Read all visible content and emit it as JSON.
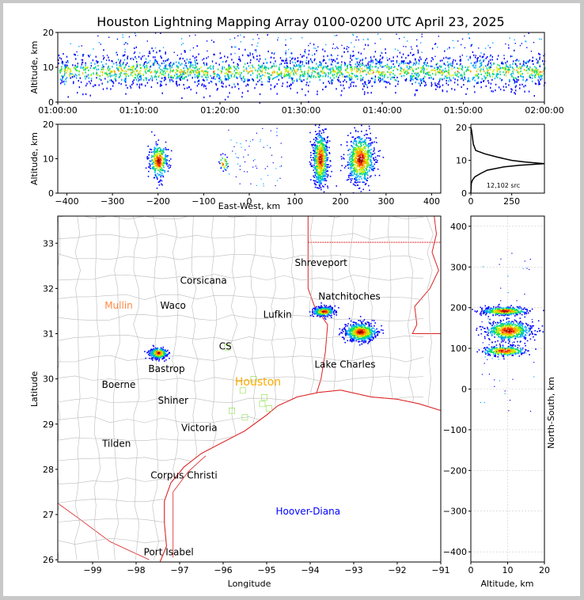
{
  "title": "Houston Lightning Mapping Array 0100-0200 UTC April 23, 2025",
  "colors": {
    "scale": [
      "#0000ff",
      "#00aaff",
      "#00dd66",
      "#ccee00",
      "#ffaa00",
      "#ff3300",
      "#990000",
      "#ffffff"
    ],
    "map_coast": "#dd2222",
    "map_borders": "#bbbbbb",
    "city": "#000000",
    "mullin": "#ff8844",
    "houston": "#ffaa00",
    "hoover": "#0000ff",
    "ring": "#88dd44"
  },
  "chart_data": [
    {
      "id": "time_height",
      "type": "scatter",
      "ylabel": "Altitude, km",
      "ylim": [
        0,
        20
      ],
      "yticks": [
        "0",
        "10",
        "20"
      ],
      "xlim_minutes": [
        60,
        120
      ],
      "xticks": [
        "01:00:00",
        "01:10:00",
        "01:20:00",
        "01:30:00",
        "01:40:00",
        "01:50:00",
        "02:00:00"
      ],
      "activity": {
        "altitude_center_km": 9,
        "altitude_spread_km": 2.5,
        "peak_time": "01:30:00"
      }
    },
    {
      "id": "ew_altitude",
      "type": "scatter",
      "xlabel": "East-West, km",
      "ylabel": "Altitude, km",
      "xlim": [
        -420,
        420
      ],
      "ylim": [
        0,
        20
      ],
      "xticks": [
        "−400",
        "−300",
        "−200",
        "−100",
        "0",
        "100",
        "200",
        "300",
        "400"
      ],
      "yticks": [
        "0",
        "10",
        "20"
      ],
      "clusters": [
        {
          "x": -200,
          "y": 9.5,
          "sx": 10,
          "sy": 2.5,
          "n": 350
        },
        {
          "x": -57,
          "y": 9,
          "sx": 5,
          "sy": 1.2,
          "n": 35
        },
        {
          "x": 155,
          "y": 10,
          "sx": 8,
          "sy": 4,
          "n": 700
        },
        {
          "x": 243,
          "y": 10,
          "sx": 15,
          "sy": 3.5,
          "n": 750
        }
      ]
    },
    {
      "id": "altitude_histogram",
      "type": "line",
      "xlim": [
        0,
        450
      ],
      "ylim": [
        0,
        21
      ],
      "xticks": [
        "0",
        "250"
      ],
      "yticks": [
        "0",
        "10",
        "20"
      ],
      "annotation": "12,102 src",
      "profile": [
        [
          20,
          0
        ],
        [
          19,
          5
        ],
        [
          17,
          10
        ],
        [
          15,
          15
        ],
        [
          13,
          30
        ],
        [
          12,
          85
        ],
        [
          11,
          160
        ],
        [
          10,
          250
        ],
        [
          9.5,
          330
        ],
        [
          9,
          450
        ],
        [
          8.5,
          300
        ],
        [
          8,
          200
        ],
        [
          7,
          100
        ],
        [
          6,
          60
        ],
        [
          5,
          25
        ],
        [
          4,
          10
        ],
        [
          3,
          3
        ],
        [
          0,
          0
        ]
      ]
    },
    {
      "id": "plan_view",
      "type": "scatter",
      "xlabel": "Longitude",
      "ylabel": "Latitude",
      "xlim": [
        -99.8,
        -91
      ],
      "ylim": [
        25.95,
        33.6
      ],
      "xticks": [
        "−99",
        "−98",
        "−97",
        "−96",
        "−95",
        "−94",
        "−93",
        "−92",
        "−91"
      ],
      "yticks": [
        "26",
        "27",
        "28",
        "29",
        "30",
        "31",
        "32",
        "33"
      ],
      "clusters": [
        {
          "lon": -97.5,
          "lat": 30.58,
          "slon": 0.1,
          "slat": 0.06,
          "n": 350
        },
        {
          "lon": -93.7,
          "lat": 31.5,
          "slon": 0.12,
          "slat": 0.05,
          "n": 400
        },
        {
          "lon": -92.85,
          "lat": 31.05,
          "slon": 0.18,
          "slat": 0.1,
          "n": 700
        }
      ]
    },
    {
      "id": "ns_altitude",
      "type": "scatter",
      "xlabel": "Altitude, km",
      "ylabel": "North-South, km",
      "xlim": [
        0,
        20
      ],
      "ylim": [
        -425,
        425
      ],
      "xticks": [
        "0",
        "10",
        "20"
      ],
      "yticks": [
        "400",
        "300",
        "200",
        "100",
        "0",
        "−100",
        "−200",
        "−300",
        "−400"
      ],
      "clusters": [
        {
          "alt": 9,
          "ns": 193,
          "salt": 3,
          "sns": 5,
          "n": 500
        },
        {
          "alt": 10,
          "ns": 145,
          "salt": 3,
          "sns": 12,
          "n": 650
        },
        {
          "alt": 9,
          "ns": 95,
          "salt": 3,
          "sns": 6,
          "n": 350
        }
      ]
    }
  ],
  "cities": [
    {
      "name": "Shreveport",
      "lon": -93.75,
      "lat": 32.5
    },
    {
      "name": "Corsicana",
      "lon": -96.45,
      "lat": 32.1
    },
    {
      "name": "Natchitoches",
      "lon": -93.1,
      "lat": 31.75
    },
    {
      "name": "Waco",
      "lon": -97.15,
      "lat": 31.55
    },
    {
      "name": "Lufkin",
      "lon": -94.75,
      "lat": 31.35
    },
    {
      "name": "Lake Charles",
      "lon": -93.2,
      "lat": 30.25
    },
    {
      "name": "Boerne",
      "lon": -98.4,
      "lat": 29.8
    },
    {
      "name": "Shiner",
      "lon": -97.15,
      "lat": 29.45
    },
    {
      "name": "Victoria",
      "lon": -96.55,
      "lat": 28.85
    },
    {
      "name": "Tilden",
      "lon": -98.45,
      "lat": 28.5
    },
    {
      "name": "Corpus Christi",
      "lon": -96.9,
      "lat": 27.8
    },
    {
      "name": "Port Isabel",
      "lon": -97.25,
      "lat": 26.1
    },
    {
      "name": "CS",
      "lon": -95.95,
      "lat": 30.65
    },
    {
      "name": "Bastrop",
      "lon": -97.3,
      "lat": 30.15
    }
  ],
  "special_labels": {
    "mullin": {
      "name": "Mullin",
      "lon": -98.4,
      "lat": 31.55
    },
    "houston": {
      "name": "Houston",
      "lon": -95.2,
      "lat": 29.85
    },
    "hoover": {
      "name": "Hoover-Diana",
      "lon": -94.05,
      "lat": 27.0
    }
  }
}
